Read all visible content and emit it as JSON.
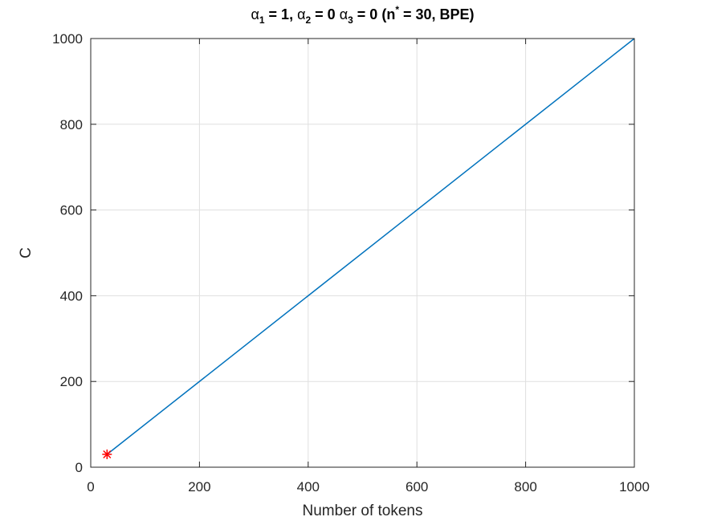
{
  "chart_data": {
    "type": "line",
    "title": {
      "greek": "α",
      "parts": [
        {
          "sym": "α",
          "sub": "1",
          "text": " = 1, "
        },
        {
          "sym": "α",
          "sub": "2",
          "text": " = 0 "
        },
        {
          "sym": "α",
          "sub": "3",
          "text": " = 0 (n"
        },
        {
          "sup": "*",
          "text": " = 30, BPE)"
        }
      ]
    },
    "xlabel": "Number of tokens",
    "ylabel": "C",
    "xlim": [
      0,
      1000
    ],
    "ylim": [
      0,
      1000
    ],
    "xticks": [
      0,
      200,
      400,
      600,
      800,
      1000
    ],
    "yticks": [
      0,
      200,
      400,
      600,
      800,
      1000
    ],
    "xtick_labels": [
      "0",
      "200",
      "400",
      "600",
      "800",
      "1000"
    ],
    "ytick_labels": [
      "0",
      "200",
      "400",
      "600",
      "800",
      "1000"
    ],
    "grid": true,
    "series": [
      {
        "type": "line",
        "color": "#0072bd",
        "x": [
          30,
          1000
        ],
        "y": [
          30,
          1000
        ]
      },
      {
        "type": "marker",
        "marker": "asterisk",
        "color": "#ff0000",
        "x": [
          30
        ],
        "y": [
          30
        ]
      }
    ]
  }
}
